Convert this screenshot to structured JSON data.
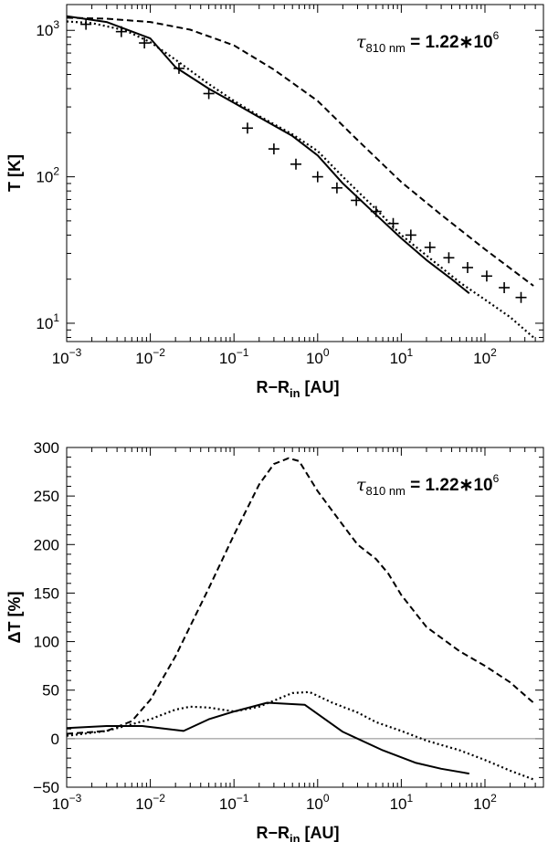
{
  "chart_data": [
    {
      "type": "line",
      "xlabel": "R−R",
      "xlabel_sub": "in",
      "xlabel_unit": " [AU]",
      "ylabel": "T [K]",
      "xscale": "log",
      "yscale": "log",
      "xlim": [
        0.001,
        500
      ],
      "ylim": [
        7.5,
        1500
      ],
      "annotation": {
        "symbol": "τ",
        "sub": "810 nm",
        "text": " = 1.22∗10",
        "sup": "6"
      },
      "x_ticks": [
        {
          "value": 0.001,
          "base": "10",
          "exp": "−3"
        },
        {
          "value": 0.01,
          "base": "10",
          "exp": "−2"
        },
        {
          "value": 0.1,
          "base": "10",
          "exp": "−1"
        },
        {
          "value": 1,
          "base": "10",
          "exp": "0"
        },
        {
          "value": 10,
          "base": "10",
          "exp": "1"
        },
        {
          "value": 100,
          "base": "10",
          "exp": "2"
        }
      ],
      "y_ticks": [
        {
          "value": 10,
          "base": "10",
          "exp": "1"
        },
        {
          "value": 100,
          "base": "10",
          "exp": "2"
        },
        {
          "value": 1000,
          "base": "10",
          "exp": "3"
        }
      ],
      "series": [
        {
          "style": "dashed",
          "x": [
            0.001,
            0.003,
            0.01,
            0.03,
            0.1,
            0.3,
            1,
            3,
            10,
            30,
            100,
            380
          ],
          "y": [
            1220,
            1200,
            1140,
            1010,
            790,
            540,
            330,
            178,
            92,
            55,
            32,
            18
          ]
        },
        {
          "style": "dotted",
          "x": [
            0.001,
            0.002,
            0.005,
            0.01,
            0.02,
            0.05,
            0.1,
            0.2,
            0.5,
            1,
            2,
            5,
            10,
            20,
            50,
            100,
            200,
            380
          ],
          "y": [
            1150,
            1120,
            1000,
            830,
            630,
            430,
            330,
            260,
            195,
            150,
            100,
            60,
            40,
            29,
            19,
            14.5,
            11,
            8
          ]
        },
        {
          "style": "solid",
          "x": [
            0.001,
            0.003,
            0.01,
            0.02,
            0.05,
            0.1,
            0.2,
            0.5,
            1,
            2,
            5,
            10,
            20,
            40,
            65
          ],
          "y": [
            1250,
            1140,
            880,
            560,
            400,
            320,
            255,
            190,
            140,
            90,
            55,
            38,
            27,
            20,
            16
          ]
        },
        {
          "style": "markers",
          "x": [
            0.0017,
            0.0045,
            0.0085,
            0.022,
            0.05,
            0.145,
            0.3,
            0.55,
            1.0,
            1.7,
            2.9,
            5.0,
            8.0,
            13,
            22,
            37,
            62,
            105,
            170,
            270
          ],
          "y": [
            1100,
            980,
            820,
            550,
            370,
            215,
            155,
            122,
            100,
            84,
            69,
            58,
            48,
            40,
            33,
            28,
            24,
            21,
            17.5,
            15
          ]
        }
      ]
    },
    {
      "type": "line",
      "xlabel": "R−R",
      "xlabel_sub": "in",
      "xlabel_unit": " [AU]",
      "ylabel": "ΔT [%]",
      "xscale": "log",
      "yscale": "linear",
      "xlim": [
        0.001,
        500
      ],
      "ylim": [
        -50,
        300
      ],
      "annotation": {
        "symbol": "τ",
        "sub": "810 nm",
        "text": " = 1.22∗10",
        "sup": "6"
      },
      "x_ticks": [
        {
          "value": 0.001,
          "base": "10",
          "exp": "−3"
        },
        {
          "value": 0.01,
          "base": "10",
          "exp": "−2"
        },
        {
          "value": 0.1,
          "base": "10",
          "exp": "−1"
        },
        {
          "value": 1,
          "base": "10",
          "exp": "0"
        },
        {
          "value": 10,
          "base": "10",
          "exp": "1"
        },
        {
          "value": 100,
          "base": "10",
          "exp": "2"
        }
      ],
      "y_ticks": [
        -50,
        0,
        50,
        100,
        150,
        200,
        250,
        300
      ],
      "zero_line": true,
      "series": [
        {
          "style": "dashed",
          "x": [
            0.001,
            0.003,
            0.006,
            0.01,
            0.02,
            0.05,
            0.1,
            0.2,
            0.3,
            0.45,
            0.6,
            1,
            2,
            3,
            5,
            7,
            10,
            20,
            50,
            100,
            200,
            380
          ],
          "y": [
            5,
            8,
            18,
            40,
            85,
            155,
            210,
            262,
            283,
            289,
            286,
            255,
            220,
            200,
            185,
            170,
            148,
            115,
            90,
            75,
            58,
            37
          ]
        },
        {
          "style": "dotted",
          "x": [
            0.001,
            0.003,
            0.01,
            0.02,
            0.03,
            0.05,
            0.1,
            0.2,
            0.5,
            0.8,
            1.5,
            3,
            5,
            10,
            20,
            50,
            100,
            200,
            380
          ],
          "y": [
            3,
            8,
            20,
            30,
            33,
            32,
            28,
            33,
            47,
            48,
            37,
            27,
            17,
            8,
            -2,
            -12,
            -22,
            -33,
            -42
          ]
        },
        {
          "style": "solid",
          "x": [
            0.001,
            0.003,
            0.008,
            0.025,
            0.05,
            0.1,
            0.25,
            0.7,
            2,
            6,
            15,
            30,
            65
          ],
          "y": [
            11,
            13,
            13,
            8,
            20,
            28,
            37,
            35,
            7,
            -12,
            -25,
            -31,
            -36
          ]
        }
      ]
    }
  ]
}
